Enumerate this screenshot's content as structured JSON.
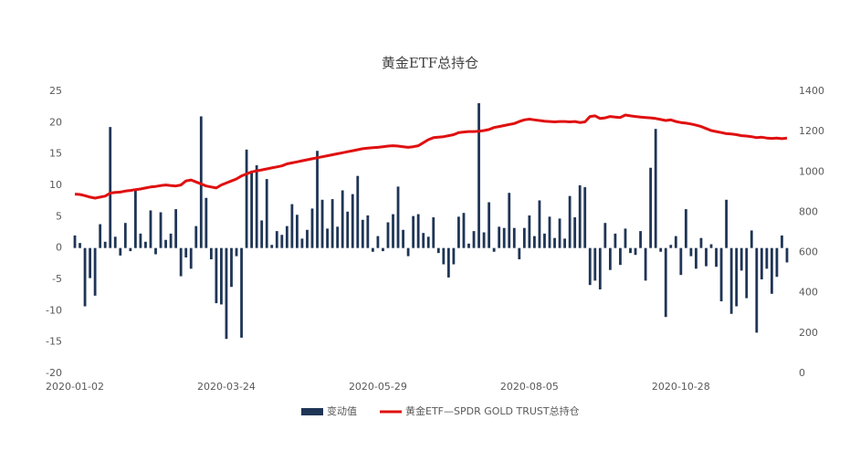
{
  "chart_data": {
    "type": "bar-line",
    "title": "黄金ETF总持仓",
    "categories": [
      "2020-01-02",
      null,
      null,
      null,
      null,
      null,
      null,
      null,
      null,
      null,
      null,
      null,
      null,
      null,
      null,
      null,
      null,
      null,
      null,
      null,
      null,
      null,
      null,
      null,
      null,
      null,
      null,
      null,
      null,
      null,
      "2020-03-24",
      null,
      null,
      null,
      null,
      null,
      null,
      null,
      null,
      null,
      null,
      null,
      null,
      null,
      null,
      null,
      null,
      null,
      null,
      null,
      null,
      null,
      null,
      null,
      null,
      null,
      null,
      null,
      null,
      null,
      "2020-05-29",
      null,
      null,
      null,
      null,
      null,
      null,
      null,
      null,
      null,
      null,
      null,
      null,
      null,
      null,
      null,
      null,
      null,
      null,
      null,
      null,
      null,
      null,
      null,
      null,
      null,
      null,
      null,
      null,
      null,
      "2020-08-05",
      null,
      null,
      null,
      null,
      null,
      null,
      null,
      null,
      null,
      null,
      null,
      null,
      null,
      null,
      null,
      null,
      null,
      null,
      null,
      null,
      null,
      null,
      null,
      null,
      null,
      null,
      null,
      null,
      null,
      "2020-10-28",
      null,
      null,
      null,
      null,
      null,
      null,
      null,
      null,
      null,
      null,
      null,
      null,
      null,
      null,
      null,
      null,
      null,
      null,
      null,
      null,
      null
    ],
    "series": [
      {
        "name": "变动值",
        "color": "#1f3556",
        "values": [
          2,
          0.8,
          -9.3,
          -4.8,
          -7.6,
          3.8,
          1,
          19.3,
          1.8,
          -1.2,
          4,
          -0.5,
          9.3,
          2.3,
          1,
          6,
          -1,
          5.7,
          1.3,
          2.3,
          6.2,
          -4.5,
          -1.5,
          -3.3,
          3.5,
          21,
          8,
          -1.8,
          -8.8,
          -9,
          -14.5,
          -6.2,
          -1.3,
          -14.3,
          15.7,
          12,
          13.2,
          4.4,
          11,
          0.5,
          2.7,
          2.1,
          3.5,
          7,
          5.3,
          1.5,
          2.9,
          6.3,
          15.5,
          7.7,
          3.1,
          7.8,
          3.4,
          9.2,
          5.8,
          8.6,
          11.5,
          4.5,
          5.2,
          -0.6,
          1.9,
          -0.5,
          4.1,
          5.4,
          9.8,
          2.9,
          -1.3,
          5.1,
          5.4,
          2.4,
          1.8,
          4.9,
          -0.8,
          -2.6,
          -4.7,
          -2.6,
          5,
          5.6,
          0.7,
          2.7,
          23.1,
          2.5,
          7.3,
          -0.6,
          3.4,
          3.2,
          8.8,
          3.2,
          -1.8,
          3.2,
          5.2,
          1.9,
          7.6,
          2.3,
          5,
          1.6,
          4.7,
          1.5,
          8.3,
          4.9,
          10,
          9.7,
          -5.9,
          -5.2,
          -6.6,
          4,
          -3.5,
          2.3,
          -2.7,
          3.1,
          -0.8,
          -1.1,
          2.7,
          -5.2,
          12.8,
          19,
          -0.6,
          -11,
          0.5,
          1.9,
          -4.3,
          6.2,
          -1.3,
          -3.3,
          1.6,
          -2.9,
          0.6,
          -3,
          -8.5,
          7.7,
          -10.5,
          -9.3,
          -3.6,
          -8,
          2.8,
          -13.5,
          -5,
          -3.3,
          -7.3,
          -4.6,
          2,
          -2.3
        ]
      },
      {
        "name": "黄金ETF—SPDR GOLD TRUST总持仓",
        "color": "#e01010",
        "axis": "y2",
        "values": [
          890,
          888,
          882,
          875,
          870,
          875,
          880,
          895,
          898,
          900,
          905,
          908,
          912,
          915,
          920,
          925,
          928,
          932,
          935,
          932,
          930,
          935,
          955,
          960,
          950,
          940,
          930,
          925,
          920,
          935,
          945,
          955,
          965,
          980,
          990,
          1000,
          1005,
          1010,
          1015,
          1020,
          1025,
          1030,
          1040,
          1045,
          1050,
          1055,
          1060,
          1065,
          1070,
          1075,
          1080,
          1085,
          1090,
          1095,
          1100,
          1105,
          1110,
          1115,
          1118,
          1120,
          1122,
          1125,
          1128,
          1130,
          1128,
          1125,
          1122,
          1125,
          1130,
          1145,
          1160,
          1170,
          1172,
          1175,
          1180,
          1185,
          1195,
          1198,
          1200,
          1200,
          1202,
          1205,
          1210,
          1220,
          1225,
          1230,
          1235,
          1240,
          1250,
          1258,
          1262,
          1258,
          1255,
          1252,
          1250,
          1248,
          1250,
          1250,
          1248,
          1250,
          1245,
          1248,
          1275,
          1278,
          1265,
          1268,
          1275,
          1272,
          1270,
          1282,
          1278,
          1275,
          1272,
          1270,
          1268,
          1265,
          1260,
          1255,
          1258,
          1250,
          1245,
          1242,
          1238,
          1232,
          1225,
          1215,
          1205,
          1200,
          1195,
          1190,
          1188,
          1185,
          1180,
          1178,
          1175,
          1170,
          1172,
          1168,
          1166,
          1168,
          1165,
          1168
        ]
      }
    ],
    "ylim": [
      -20,
      25
    ],
    "yticks": [
      -20,
      -15,
      -10,
      -5,
      0,
      5,
      10,
      15,
      20,
      25
    ],
    "y2lim": [
      0,
      1400
    ],
    "y2ticks": [
      0,
      200,
      400,
      600,
      800,
      1000,
      1200,
      1400
    ],
    "grid": false,
    "legend": "bottom"
  }
}
